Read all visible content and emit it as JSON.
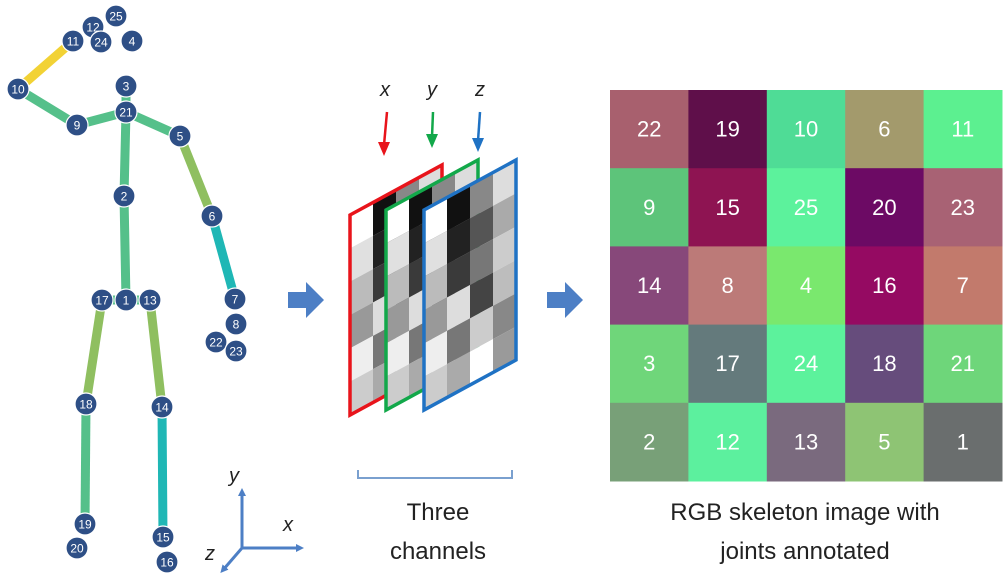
{
  "colors": {
    "joint_fill": "#2e4f86",
    "bone_green": "#55c08a",
    "bone_teal": "#1fb7b5",
    "bone_yellow": "#f2d235",
    "bone_olive": "#8fbf60",
    "arrow_blue": "#4d7fc5",
    "channel_x": "#e8141b",
    "channel_y": "#12a84a",
    "channel_z": "#1f72c4",
    "bracket": "#7aa0cf"
  },
  "skeleton": {
    "joints": [
      {
        "id": "1",
        "label": "1"
      },
      {
        "id": "2",
        "label": "2"
      },
      {
        "id": "3",
        "label": "3"
      },
      {
        "id": "4",
        "label": "4"
      },
      {
        "id": "5",
        "label": "5"
      },
      {
        "id": "6",
        "label": "6"
      },
      {
        "id": "7",
        "label": "7"
      },
      {
        "id": "8",
        "label": "8"
      },
      {
        "id": "9",
        "label": "9"
      },
      {
        "id": "10",
        "label": "10"
      },
      {
        "id": "11",
        "label": "11"
      },
      {
        "id": "12",
        "label": "12"
      },
      {
        "id": "13",
        "label": "13"
      },
      {
        "id": "14",
        "label": "14"
      },
      {
        "id": "15",
        "label": "15"
      },
      {
        "id": "16",
        "label": "16"
      },
      {
        "id": "17",
        "label": "17"
      },
      {
        "id": "18",
        "label": "18"
      },
      {
        "id": "19",
        "label": "19"
      },
      {
        "id": "20",
        "label": "20"
      },
      {
        "id": "21",
        "label": "21"
      },
      {
        "id": "22",
        "label": "22"
      },
      {
        "id": "23",
        "label": "23"
      },
      {
        "id": "24",
        "label": "24"
      },
      {
        "id": "25",
        "label": "25"
      }
    ]
  },
  "axes": {
    "x_label": "x",
    "y_label": "y",
    "z_label": "z"
  },
  "channels": {
    "x_label": "x",
    "y_label": "y",
    "z_label": "z",
    "caption_line1": "Three",
    "caption_line2": "channels"
  },
  "rgb_image": {
    "caption_line1": "RGB skeleton image with",
    "caption_line2": "joints annotated",
    "rows": [
      [
        {
          "label": "22",
          "color": "#a8606e"
        },
        {
          "label": "19",
          "color": "#5f0f4a"
        },
        {
          "label": "10",
          "color": "#4fdc96"
        },
        {
          "label": "6",
          "color": "#a39a6c"
        },
        {
          "label": "11",
          "color": "#5cf090"
        }
      ],
      [
        {
          "label": "9",
          "color": "#5dc47a"
        },
        {
          "label": "15",
          "color": "#8e1452"
        },
        {
          "label": "25",
          "color": "#5cf29c"
        },
        {
          "label": "20",
          "color": "#6c0a64"
        },
        {
          "label": "23",
          "color": "#a86274"
        }
      ],
      [
        {
          "label": "14",
          "color": "#87487a"
        },
        {
          "label": "8",
          "color": "#bc7a78"
        },
        {
          "label": "4",
          "color": "#7ae86e"
        },
        {
          "label": "16",
          "color": "#950a62"
        },
        {
          "label": "7",
          "color": "#c27a6c"
        }
      ],
      [
        {
          "label": "3",
          "color": "#6fd67a"
        },
        {
          "label": "17",
          "color": "#647a7c"
        },
        {
          "label": "24",
          "color": "#5cf29c"
        },
        {
          "label": "18",
          "color": "#664c7c"
        },
        {
          "label": "21",
          "color": "#6ed67a"
        }
      ],
      [
        {
          "label": "2",
          "color": "#78a078"
        },
        {
          "label": "12",
          "color": "#5cf09e"
        },
        {
          "label": "13",
          "color": "#7a6a7e"
        },
        {
          "label": "5",
          "color": "#8ec474"
        },
        {
          "label": "1",
          "color": "#6a6e6e"
        }
      ]
    ]
  }
}
